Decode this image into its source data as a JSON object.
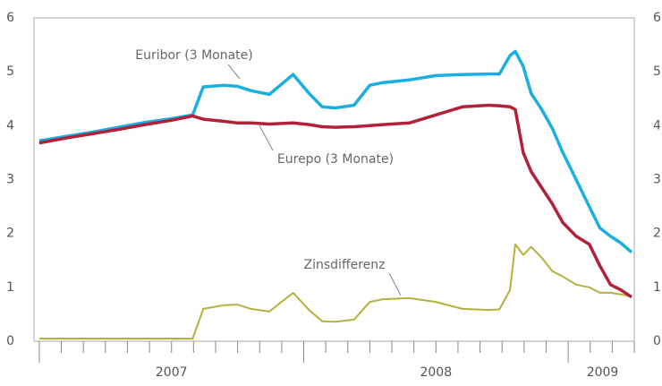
{
  "chart_data": {
    "type": "line",
    "x": [
      2007.0,
      2007.1,
      2007.2,
      2007.3,
      2007.4,
      2007.5,
      2007.58,
      2007.62,
      2007.7,
      2007.75,
      2007.8,
      2007.87,
      2007.96,
      2008.02,
      2008.07,
      2008.12,
      2008.19,
      2008.25,
      2008.3,
      2008.4,
      2008.5,
      2008.6,
      2008.7,
      2008.74,
      2008.78,
      2008.8,
      2008.83,
      2008.86,
      2008.9,
      2008.94,
      2008.98,
      2009.03,
      2009.08,
      2009.12,
      2009.16,
      2009.2,
      2009.24
    ],
    "series": [
      {
        "name": "Euribor (3 Monate)",
        "color": "#1aafe0",
        "values": [
          3.72,
          3.8,
          3.88,
          3.97,
          4.06,
          4.13,
          4.2,
          4.72,
          4.75,
          4.73,
          4.65,
          4.58,
          4.95,
          4.6,
          4.35,
          4.33,
          4.38,
          4.75,
          4.8,
          4.85,
          4.93,
          4.95,
          4.96,
          4.96,
          5.3,
          5.38,
          5.1,
          4.6,
          4.3,
          3.95,
          3.5,
          3.0,
          2.5,
          2.1,
          1.95,
          1.82,
          1.65
        ]
      },
      {
        "name": "Eurepo (3 Monate)",
        "color": "#b3203a",
        "values": [
          3.68,
          3.77,
          3.85,
          3.93,
          4.02,
          4.1,
          4.18,
          4.12,
          4.08,
          4.05,
          4.05,
          4.03,
          4.05,
          4.02,
          3.98,
          3.97,
          3.98,
          4.0,
          4.02,
          4.05,
          4.2,
          4.35,
          4.38,
          4.37,
          4.35,
          4.3,
          3.5,
          3.15,
          2.85,
          2.55,
          2.2,
          1.95,
          1.8,
          1.4,
          1.05,
          0.95,
          0.82
        ]
      },
      {
        "name": "Zinsdifferenz",
        "color": "#b4b23a",
        "values": [
          0.05,
          0.05,
          0.05,
          0.05,
          0.05,
          0.05,
          0.05,
          0.6,
          0.67,
          0.68,
          0.6,
          0.55,
          0.9,
          0.58,
          0.37,
          0.36,
          0.4,
          0.73,
          0.78,
          0.8,
          0.73,
          0.6,
          0.58,
          0.59,
          0.95,
          1.8,
          1.6,
          1.75,
          1.55,
          1.3,
          1.2,
          1.05,
          1.0,
          0.9,
          0.9,
          0.87,
          0.83
        ]
      }
    ],
    "xlim": [
      2006.98,
      2009.25
    ],
    "xticks": [
      {
        "value": 2007.5,
        "label": "2007"
      },
      {
        "value": 2008.5,
        "label": "2008"
      },
      {
        "value": 2009.13,
        "label": "2009"
      }
    ],
    "ylim": [
      0,
      6
    ],
    "yticks": [
      0,
      1,
      2,
      3,
      4,
      5,
      6
    ]
  }
}
